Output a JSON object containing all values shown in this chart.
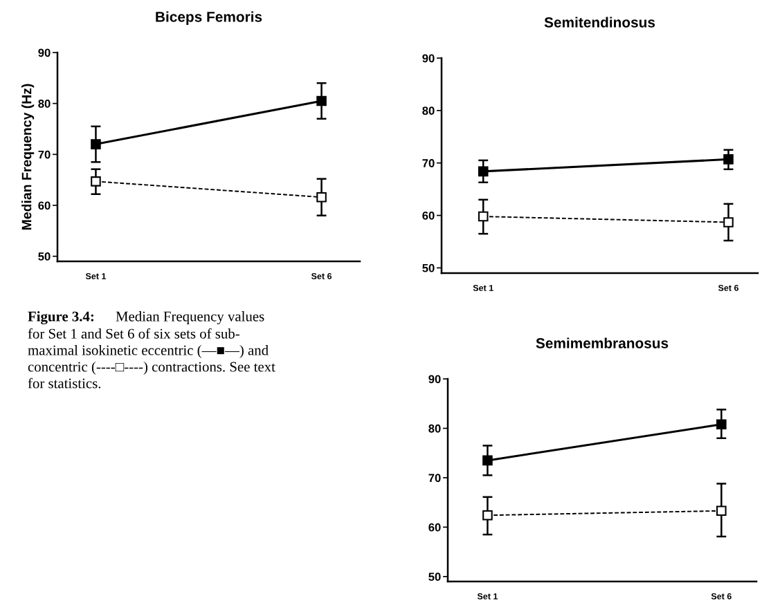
{
  "chart_data": [
    {
      "type": "line",
      "title": "Biceps Femoris",
      "ylabel": "Median Frequency (Hz)",
      "categories": [
        "Set 1",
        "Set 6"
      ],
      "ylim": [
        49,
        90
      ],
      "yticks": [
        50,
        60,
        70,
        80,
        90
      ],
      "grid": false,
      "legend": false,
      "marker": "square",
      "series": [
        {
          "color": "#000000",
          "line_style": "solid",
          "values": [
            72.0,
            80.5
          ],
          "errors": [
            [
              68.5,
              75.5
            ],
            [
              77.0,
              84.0
            ]
          ]
        },
        {
          "color": "#000000",
          "line_style": "dashed",
          "values": [
            64.7,
            61.6
          ],
          "errors": [
            [
              62.2,
              67.1
            ],
            [
              58.0,
              65.2
            ]
          ]
        }
      ]
    },
    {
      "type": "line",
      "title": "Semitendinosus",
      "categories": [
        "Set 1",
        "Set 6"
      ],
      "ylim": [
        49,
        90
      ],
      "yticks": [
        50,
        60,
        70,
        80,
        90
      ],
      "grid": false,
      "legend": false,
      "marker": "square",
      "series": [
        {
          "color": "#000000",
          "line_style": "solid",
          "values": [
            68.4,
            70.7
          ],
          "errors": [
            [
              66.3,
              70.5
            ],
            [
              68.8,
              72.5
            ]
          ]
        },
        {
          "color": "#000000",
          "line_style": "dashed",
          "values": [
            59.8,
            58.7
          ],
          "errors": [
            [
              56.5,
              63.0
            ],
            [
              55.2,
              62.2
            ]
          ]
        }
      ]
    },
    {
      "type": "other",
      "annotations": [
        "Figure 3.4:",
        "Median Frequency values\nfor Set 1 and Set 6 of six sets of sub-\nmaximal isokinetic eccentric (—■—) and\nconcentric (----□----) contractions. See text\nfor statistics."
      ]
    },
    {
      "type": "line",
      "title": "Semimembranosus",
      "categories": [
        "Set 1",
        "Set 6"
      ],
      "ylim": [
        49,
        90
      ],
      "yticks": [
        50,
        60,
        70,
        80,
        90
      ],
      "grid": false,
      "legend": false,
      "marker": "square",
      "series": [
        {
          "color": "#000000",
          "line_style": "solid",
          "values": [
            73.5,
            80.8
          ],
          "errors": [
            [
              70.5,
              76.5
            ],
            [
              78.0,
              83.8
            ]
          ]
        },
        {
          "color": "#000000",
          "line_style": "dashed",
          "values": [
            62.4,
            63.3
          ],
          "errors": [
            [
              58.5,
              66.1
            ],
            [
              58.1,
              68.8
            ]
          ]
        }
      ]
    }
  ]
}
